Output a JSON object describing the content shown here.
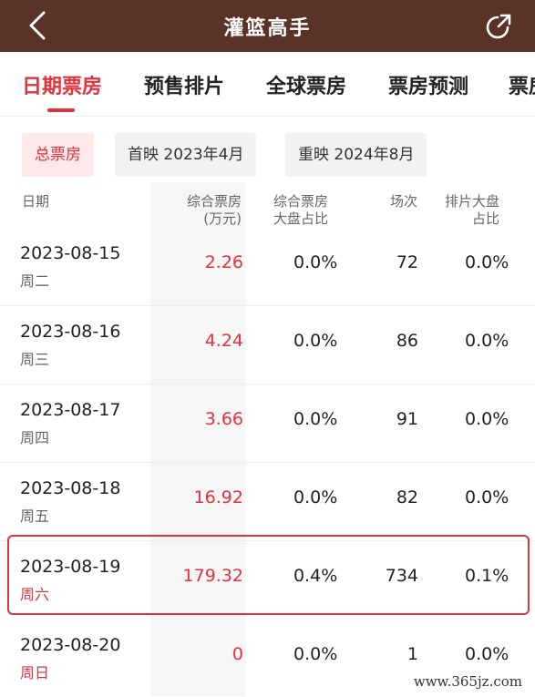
{
  "header": {
    "title": "灌篮高手",
    "back_icon": "chevron-left-icon",
    "share_icon": "share-external-icon"
  },
  "tabs": [
    {
      "label": "日期票房",
      "active": true
    },
    {
      "label": "预售排片",
      "active": false
    },
    {
      "label": "全球票房",
      "active": false
    },
    {
      "label": "票房预测",
      "active": false
    },
    {
      "label": "票房",
      "active": false
    }
  ],
  "filters": [
    {
      "label": "总票房",
      "active": true
    },
    {
      "label": "首映 2023年4月",
      "active": false
    },
    {
      "label": "重映 2024年8月",
      "active": false
    }
  ],
  "table": {
    "headers": {
      "date": "日期",
      "box_office_line1": "综合票房",
      "box_office_line2": "(万元)",
      "share_line1": "综合票房",
      "share_line2": "大盘占比",
      "shows": "场次",
      "schedule_line1": "排片大盘",
      "schedule_line2": "占比"
    },
    "rows": [
      {
        "date": "2023-08-15",
        "weekday": "周二",
        "weekend": false,
        "box_office": "2.26",
        "bo_share": "0.0%",
        "shows": "72",
        "schedule_share": "0.0%"
      },
      {
        "date": "2023-08-16",
        "weekday": "周三",
        "weekend": false,
        "box_office": "4.24",
        "bo_share": "0.0%",
        "shows": "86",
        "schedule_share": "0.0%"
      },
      {
        "date": "2023-08-17",
        "weekday": "周四",
        "weekend": false,
        "box_office": "3.66",
        "bo_share": "0.0%",
        "shows": "91",
        "schedule_share": "0.0%"
      },
      {
        "date": "2023-08-18",
        "weekday": "周五",
        "weekend": false,
        "box_office": "16.92",
        "bo_share": "0.0%",
        "shows": "82",
        "schedule_share": "0.0%"
      },
      {
        "date": "2023-08-19",
        "weekday": "周六",
        "weekend": true,
        "box_office": "179.32",
        "bo_share": "0.4%",
        "shows": "734",
        "schedule_share": "0.1%"
      },
      {
        "date": "2023-08-20",
        "weekday": "周日",
        "weekend": true,
        "box_office": "0",
        "bo_share": "0.0%",
        "shows": "1",
        "schedule_share": "0.0%"
      }
    ]
  },
  "watermark": "www.365jz.com",
  "colors": {
    "header_bg": "#5a3328",
    "accent": "#e0333d"
  }
}
